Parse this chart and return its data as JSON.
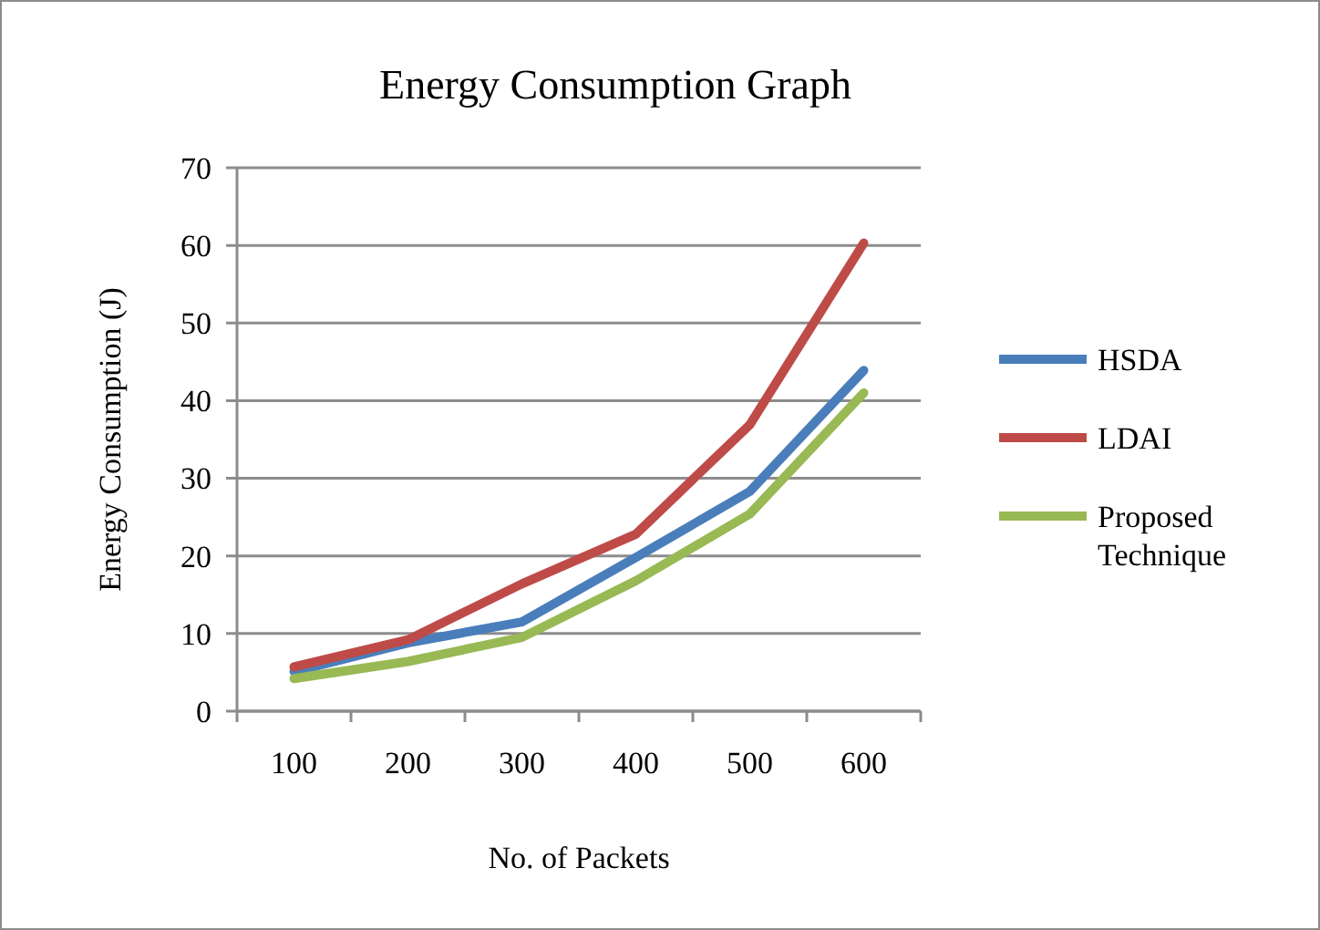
{
  "chart_data": {
    "type": "line",
    "title": "Energy Consumption Graph",
    "xlabel": "No. of Packets",
    "ylabel": "Energy Consumption (J)",
    "categories": [
      "100",
      "200",
      "300",
      "400",
      "500",
      "600"
    ],
    "series": [
      {
        "name": "HSDA",
        "color": "#4a7ebb",
        "values": [
          5.1,
          8.8,
          11.5,
          19.8,
          28.3,
          43.9
        ]
      },
      {
        "name": "LDAI",
        "color": "#be4b48",
        "values": [
          5.7,
          9.2,
          16.4,
          22.8,
          36.9,
          60.3
        ]
      },
      {
        "name": "Proposed Technique",
        "color": "#98b954",
        "values": [
          4.2,
          6.4,
          9.5,
          16.8,
          25.4,
          41
        ]
      }
    ],
    "ylim": [
      0,
      70
    ],
    "yticks": [
      0,
      10,
      20,
      30,
      40,
      50,
      60,
      70
    ],
    "grid": "y",
    "legend": "right",
    "marker": "none",
    "line_style": "solid"
  }
}
